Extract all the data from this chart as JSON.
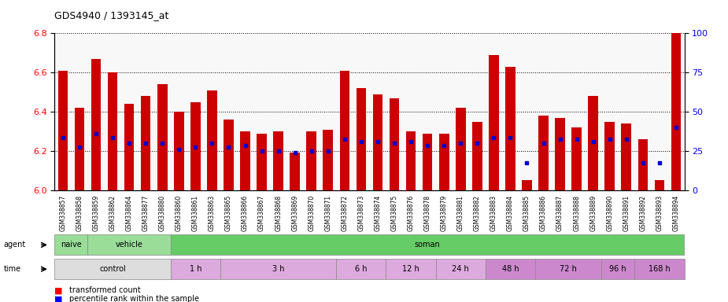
{
  "title": "GDS4940 / 1393145_at",
  "samples": [
    "GSM338857",
    "GSM338858",
    "GSM338859",
    "GSM338862",
    "GSM338864",
    "GSM338877",
    "GSM338880",
    "GSM338860",
    "GSM338861",
    "GSM338863",
    "GSM338865",
    "GSM338866",
    "GSM338867",
    "GSM338868",
    "GSM338869",
    "GSM338870",
    "GSM338871",
    "GSM338872",
    "GSM338873",
    "GSM338874",
    "GSM338875",
    "GSM338876",
    "GSM338878",
    "GSM338879",
    "GSM338881",
    "GSM338882",
    "GSM338883",
    "GSM338884",
    "GSM338885",
    "GSM338886",
    "GSM338887",
    "GSM338888",
    "GSM338889",
    "GSM338890",
    "GSM338891",
    "GSM338892",
    "GSM338893",
    "GSM338894"
  ],
  "bar_values": [
    6.61,
    6.42,
    6.67,
    6.6,
    6.44,
    6.48,
    6.54,
    6.4,
    6.45,
    6.51,
    6.36,
    6.3,
    6.29,
    6.3,
    6.19,
    6.3,
    6.31,
    6.61,
    6.52,
    6.49,
    6.47,
    6.3,
    6.29,
    6.29,
    6.42,
    6.35,
    6.69,
    6.63,
    6.05,
    6.38,
    6.37,
    6.32,
    6.48,
    6.35,
    6.34,
    6.26,
    6.05,
    6.9
  ],
  "percentile_values": [
    6.27,
    6.22,
    6.29,
    6.27,
    6.24,
    6.24,
    6.24,
    6.21,
    6.22,
    6.24,
    6.22,
    6.23,
    6.2,
    6.2,
    6.19,
    6.2,
    6.2,
    6.26,
    6.25,
    6.25,
    6.24,
    6.25,
    6.23,
    6.23,
    6.24,
    6.24,
    6.27,
    6.27,
    6.14,
    6.24,
    6.26,
    6.26,
    6.25,
    6.26,
    6.26,
    6.14,
    6.14,
    6.32
  ],
  "ylim_left": [
    6.0,
    6.8
  ],
  "ylim_right": [
    0,
    100
  ],
  "yticks_left": [
    6.0,
    6.2,
    6.4,
    6.6,
    6.8
  ],
  "yticks_right": [
    0,
    25,
    50,
    75,
    100
  ],
  "bar_color": "#cc0000",
  "percentile_color": "#0000cc",
  "bar_width": 0.6,
  "agent_groups": [
    {
      "label": "naive",
      "start": 0,
      "end": 1,
      "color": "#99dd99"
    },
    {
      "label": "vehicle",
      "start": 2,
      "end": 6,
      "color": "#99dd99"
    },
    {
      "label": "soman",
      "start": 7,
      "end": 37,
      "color": "#66cc66"
    }
  ],
  "time_groups": [
    {
      "label": "control",
      "start": 0,
      "end": 6,
      "color": "#dddddd"
    },
    {
      "label": "1 h",
      "start": 7,
      "end": 9,
      "color": "#ddaadd"
    },
    {
      "label": "3 h",
      "start": 10,
      "end": 16,
      "color": "#ddaadd"
    },
    {
      "label": "6 h",
      "start": 17,
      "end": 19,
      "color": "#ddaadd"
    },
    {
      "label": "12 h",
      "start": 20,
      "end": 22,
      "color": "#ddaadd"
    },
    {
      "label": "24 h",
      "start": 23,
      "end": 25,
      "color": "#ddaadd"
    },
    {
      "label": "48 h",
      "start": 26,
      "end": 28,
      "color": "#cc88cc"
    },
    {
      "label": "72 h",
      "start": 29,
      "end": 32,
      "color": "#cc88cc"
    },
    {
      "label": "96 h",
      "start": 33,
      "end": 34,
      "color": "#cc88cc"
    },
    {
      "label": "168 h",
      "start": 35,
      "end": 37,
      "color": "#cc88cc"
    }
  ]
}
